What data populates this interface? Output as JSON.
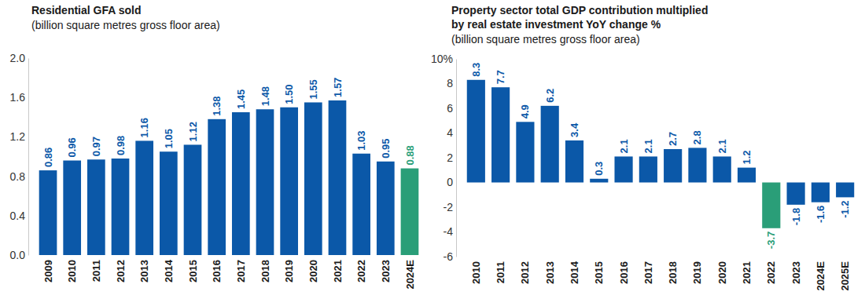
{
  "chart_data": [
    {
      "type": "bar",
      "title": "Residential GFA sold",
      "subtitle": "(billion square metres gross floor area)",
      "categories": [
        "2009",
        "2010",
        "2011",
        "2012",
        "2013",
        "2014",
        "2015",
        "2016",
        "2017",
        "2018",
        "2019",
        "2020",
        "2021",
        "2022",
        "2023",
        "2024E"
      ],
      "values": [
        0.86,
        0.96,
        0.97,
        0.98,
        1.16,
        1.05,
        1.12,
        1.38,
        1.45,
        1.48,
        1.5,
        1.55,
        1.57,
        1.03,
        0.95,
        0.88
      ],
      "value_labels": [
        "0.86",
        "0.96",
        "0.97",
        "0.98",
        "1.16",
        "1.05",
        "1.12",
        "1.38",
        "1.45",
        "1.48",
        "1.50",
        "1.55",
        "1.57",
        "1.03",
        "0.95",
        "0.88"
      ],
      "colors": [
        "#0b58a8",
        "#0b58a8",
        "#0b58a8",
        "#0b58a8",
        "#0b58a8",
        "#0b58a8",
        "#0b58a8",
        "#0b58a8",
        "#0b58a8",
        "#0b58a8",
        "#0b58a8",
        "#0b58a8",
        "#0b58a8",
        "#0b58a8",
        "#0b58a8",
        "#2a9e78"
      ],
      "ylim": [
        0,
        2
      ],
      "yticks": [
        {
          "value": 0,
          "label": "0.0"
        },
        0.4,
        0.8,
        1.2,
        1.6,
        {
          "value": 2,
          "label": "2.0"
        }
      ],
      "grid": false,
      "data_labels": true
    },
    {
      "type": "bar",
      "title": [
        "Property sector total GDP contribution multiplied",
        "by real estate investment YoY change %"
      ],
      "subtitle": "(billion square metres gross floor area)",
      "categories": [
        "2010",
        "2011",
        "2012",
        "2013",
        "2014",
        "2015",
        "2016",
        "2017",
        "2018",
        "2019",
        "2020",
        "2021",
        "2022",
        "2023",
        "2024E",
        "2025E"
      ],
      "values": [
        8.3,
        7.7,
        4.9,
        6.2,
        3.4,
        0.3,
        2.1,
        2.1,
        2.7,
        2.8,
        2.1,
        1.2,
        -3.7,
        -1.8,
        -1.6,
        -1.2
      ],
      "colors": [
        "#0b58a8",
        "#0b58a8",
        "#0b58a8",
        "#0b58a8",
        "#0b58a8",
        "#0b58a8",
        "#0b58a8",
        "#0b58a8",
        "#0b58a8",
        "#0b58a8",
        "#0b58a8",
        "#0b58a8",
        "#2a9e78",
        "#0b58a8",
        "#0b58a8",
        "#0b58a8"
      ],
      "ylim": [
        -6,
        10
      ],
      "yticks": [
        -6,
        -4,
        -2,
        0,
        2,
        4,
        6,
        8,
        {
          "value": 10,
          "label": "10%"
        }
      ],
      "grid": false,
      "data_labels": true
    }
  ]
}
